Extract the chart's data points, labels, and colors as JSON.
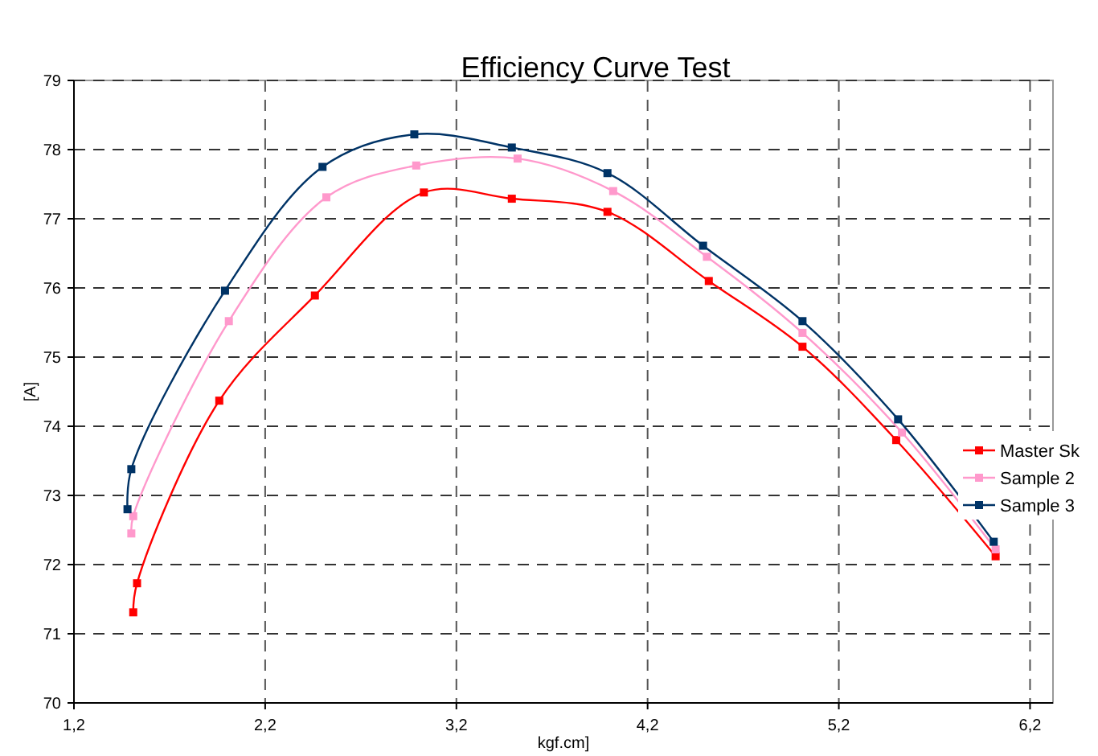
{
  "chart_data": {
    "type": "line",
    "title": "Efficiency  Curve Test",
    "xlabel": "kgf.cm]",
    "ylabel": "[A]",
    "xlim": [
      1.2,
      6.32
    ],
    "ylim": [
      70,
      79
    ],
    "xticks": [
      {
        "value": 1.2,
        "label": "1,2"
      },
      {
        "value": 2.2,
        "label": "2,2"
      },
      {
        "value": 3.2,
        "label": "3,2"
      },
      {
        "value": 4.2,
        "label": "4,2"
      },
      {
        "value": 5.2,
        "label": "5,2"
      },
      {
        "value": 6.2,
        "label": "6,2"
      }
    ],
    "yticks": [
      70,
      71,
      72,
      73,
      74,
      75,
      76,
      77,
      78,
      79
    ],
    "grid": true,
    "legend": "right",
    "marker": "square",
    "line_style": "solid",
    "series": [
      {
        "name": "Master Sk",
        "color": "#ff0000",
        "x": [
          1.51,
          1.53,
          1.96,
          2.46,
          3.03,
          3.49,
          3.99,
          4.52,
          5.01,
          5.5,
          6.02
        ],
        "values": [
          71.31,
          71.73,
          74.37,
          75.89,
          77.38,
          77.29,
          77.1,
          76.1,
          75.15,
          73.8,
          72.12
        ]
      },
      {
        "name": "Sample 2",
        "color": "#ff99cc",
        "x": [
          1.5,
          1.51,
          2.01,
          2.52,
          2.99,
          3.52,
          4.02,
          4.51,
          5.01,
          5.53,
          6.02
        ],
        "values": [
          72.45,
          72.7,
          75.52,
          77.31,
          77.77,
          77.87,
          77.4,
          76.45,
          75.35,
          73.91,
          72.22
        ]
      },
      {
        "name": "Sample 3",
        "color": "#003366",
        "x": [
          1.48,
          1.5,
          1.99,
          2.5,
          2.98,
          3.49,
          3.99,
          4.49,
          5.01,
          5.51,
          6.01
        ],
        "values": [
          72.8,
          73.38,
          75.96,
          77.75,
          78.22,
          78.03,
          77.66,
          76.61,
          75.52,
          74.1,
          72.33
        ]
      }
    ]
  }
}
